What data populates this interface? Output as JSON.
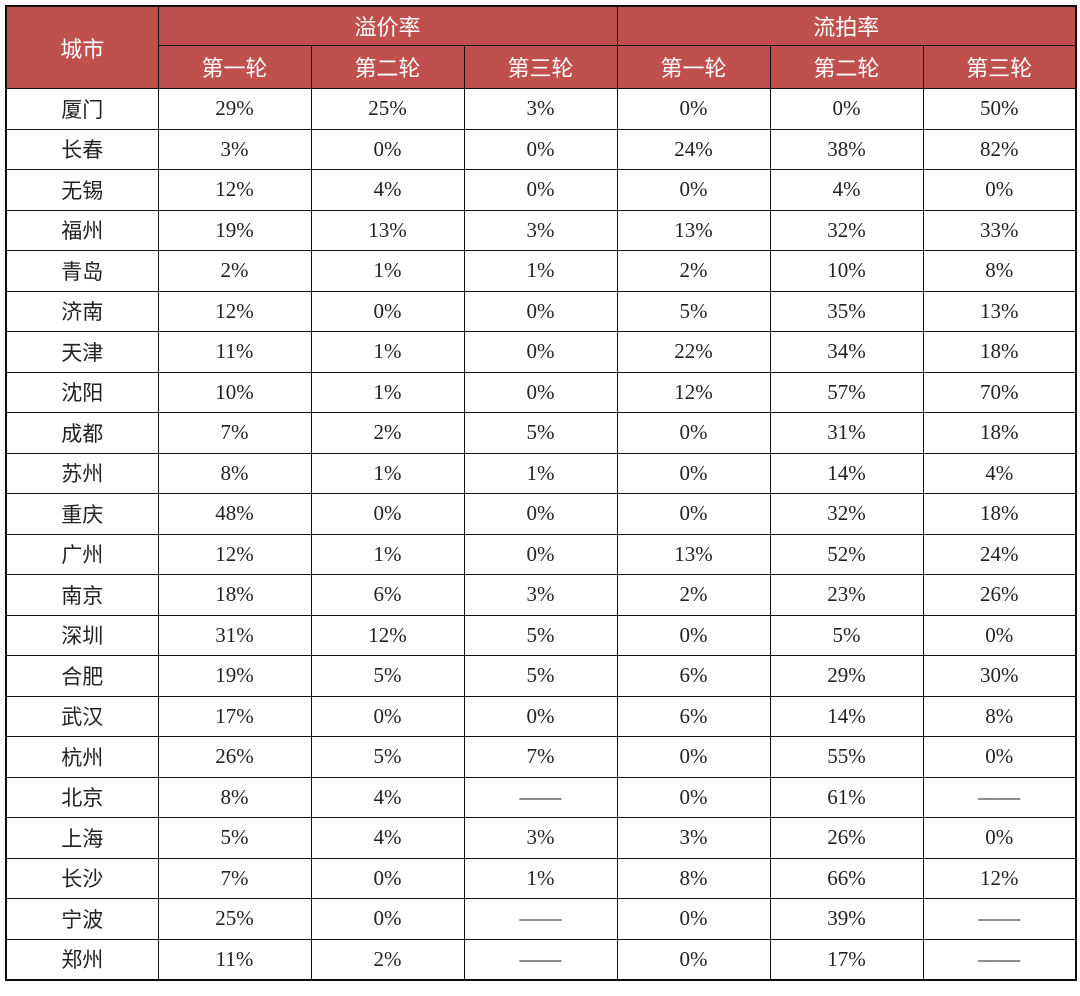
{
  "table": {
    "city_header": "城市",
    "groups": [
      {
        "label": "溢价率",
        "rounds": [
          "第一轮",
          "第二轮",
          "第三轮"
        ]
      },
      {
        "label": "流拍率",
        "rounds": [
          "第一轮",
          "第二轮",
          "第三轮"
        ]
      }
    ],
    "header_color": "#C0504D",
    "rows": [
      {
        "city": "厦门",
        "values": [
          "29%",
          "25%",
          "3%",
          "0%",
          "0%",
          "50%"
        ]
      },
      {
        "city": "长春",
        "values": [
          "3%",
          "0%",
          "0%",
          "24%",
          "38%",
          "82%"
        ]
      },
      {
        "city": "无锡",
        "values": [
          "12%",
          "4%",
          "0%",
          "0%",
          "4%",
          "0%"
        ]
      },
      {
        "city": "福州",
        "values": [
          "19%",
          "13%",
          "3%",
          "13%",
          "32%",
          "33%"
        ]
      },
      {
        "city": "青岛",
        "values": [
          "2%",
          "1%",
          "1%",
          "2%",
          "10%",
          "8%"
        ]
      },
      {
        "city": "济南",
        "values": [
          "12%",
          "0%",
          "0%",
          "5%",
          "35%",
          "13%"
        ]
      },
      {
        "city": "天津",
        "values": [
          "11%",
          "1%",
          "0%",
          "22%",
          "34%",
          "18%"
        ]
      },
      {
        "city": "沈阳",
        "values": [
          "10%",
          "1%",
          "0%",
          "12%",
          "57%",
          "70%"
        ]
      },
      {
        "city": "成都",
        "values": [
          "7%",
          "2%",
          "5%",
          "0%",
          "31%",
          "18%"
        ]
      },
      {
        "city": "苏州",
        "values": [
          "8%",
          "1%",
          "1%",
          "0%",
          "14%",
          "4%"
        ]
      },
      {
        "city": "重庆",
        "values": [
          "48%",
          "0%",
          "0%",
          "0%",
          "32%",
          "18%"
        ]
      },
      {
        "city": "广州",
        "values": [
          "12%",
          "1%",
          "0%",
          "13%",
          "52%",
          "24%"
        ]
      },
      {
        "city": "南京",
        "values": [
          "18%",
          "6%",
          "3%",
          "2%",
          "23%",
          "26%"
        ]
      },
      {
        "city": "深圳",
        "values": [
          "31%",
          "12%",
          "5%",
          "0%",
          "5%",
          "0%"
        ]
      },
      {
        "city": "合肥",
        "values": [
          "19%",
          "5%",
          "5%",
          "6%",
          "29%",
          "30%"
        ]
      },
      {
        "city": "武汉",
        "values": [
          "17%",
          "0%",
          "0%",
          "6%",
          "14%",
          "8%"
        ]
      },
      {
        "city": "杭州",
        "values": [
          "26%",
          "5%",
          "7%",
          "0%",
          "55%",
          "0%"
        ]
      },
      {
        "city": "北京",
        "values": [
          "8%",
          "4%",
          "——",
          "0%",
          "61%",
          "——"
        ]
      },
      {
        "city": "上海",
        "values": [
          "5%",
          "4%",
          "3%",
          "3%",
          "26%",
          "0%"
        ]
      },
      {
        "city": "长沙",
        "values": [
          "7%",
          "0%",
          "1%",
          "8%",
          "66%",
          "12%"
        ]
      },
      {
        "city": "宁波",
        "values": [
          "25%",
          "0%",
          "——",
          "0%",
          "39%",
          "——"
        ]
      },
      {
        "city": "郑州",
        "values": [
          "11%",
          "2%",
          "——",
          "0%",
          "17%",
          "——"
        ]
      }
    ]
  }
}
